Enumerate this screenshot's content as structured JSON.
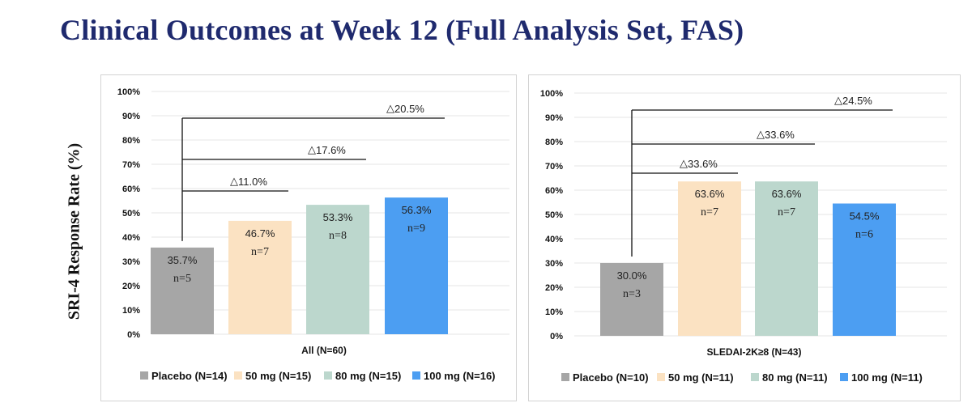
{
  "title": "Clinical Outcomes at Week 12 (Full Analysis Set, FAS)",
  "y_axis_title": "SRI-4 Response Rate (%)",
  "colors": {
    "placebo": "#a6a6a6",
    "50mg": "#fbe2c2",
    "80mg": "#bcd7cd",
    "100mg": "#4c9ef2"
  },
  "chart_data": [
    {
      "type": "bar",
      "title": "",
      "xlabel": "All (N=60)",
      "ylabel": "SRI-4 Response Rate (%)",
      "ylim": [
        0,
        100
      ],
      "yticks": [
        "0%",
        "10%",
        "20%",
        "30%",
        "40%",
        "50%",
        "60%",
        "70%",
        "80%",
        "90%",
        "100%"
      ],
      "categories": [
        "Placebo",
        "50 mg",
        "80 mg",
        "100 mg"
      ],
      "values": [
        35.7,
        46.7,
        53.3,
        56.3
      ],
      "value_labels": [
        "35.7%",
        "46.7%",
        "53.3%",
        "56.3%"
      ],
      "n_labels": [
        "n=5",
        "n=7",
        "n=8",
        "n=9"
      ],
      "legend": [
        "Placebo (N=14)",
        "50 mg (N=15)",
        "80 mg (N=15)",
        "100 mg (N=16)"
      ],
      "legend_position": "bottom",
      "comparisons": [
        {
          "from": 0,
          "to": 1,
          "label": "11.0%",
          "level": 59
        },
        {
          "from": 0,
          "to": 2,
          "label": "17.6%",
          "level": 72
        },
        {
          "from": 0,
          "to": 3,
          "label": "20.5%",
          "level": 89
        }
      ]
    },
    {
      "type": "bar",
      "title": "",
      "xlabel": "SLEDAI-2K≥8 (N=43)",
      "ylabel": "",
      "ylim": [
        0,
        100
      ],
      "yticks": [
        "0%",
        "10%",
        "20%",
        "30%",
        "40%",
        "50%",
        "60%",
        "70%",
        "80%",
        "90%",
        "100%"
      ],
      "categories": [
        "Placebo",
        "50 mg",
        "80 mg",
        "100 mg"
      ],
      "values": [
        30.0,
        63.6,
        63.6,
        54.5
      ],
      "value_labels": [
        "30.0%",
        "63.6%",
        "63.6%",
        "54.5%"
      ],
      "n_labels": [
        "n=3",
        "n=7",
        "n=7",
        "n=6"
      ],
      "legend": [
        "Placebo (N=10)",
        "50 mg (N=11)",
        "80 mg (N=11)",
        "100 mg (N=11)"
      ],
      "legend_position": "bottom",
      "comparisons": [
        {
          "from": 0,
          "to": 1,
          "label": "33.6%",
          "level": 67
        },
        {
          "from": 0,
          "to": 2,
          "label": "33.6%",
          "level": 79
        },
        {
          "from": 0,
          "to": 3,
          "label": "24.5%",
          "level": 93
        }
      ]
    }
  ]
}
